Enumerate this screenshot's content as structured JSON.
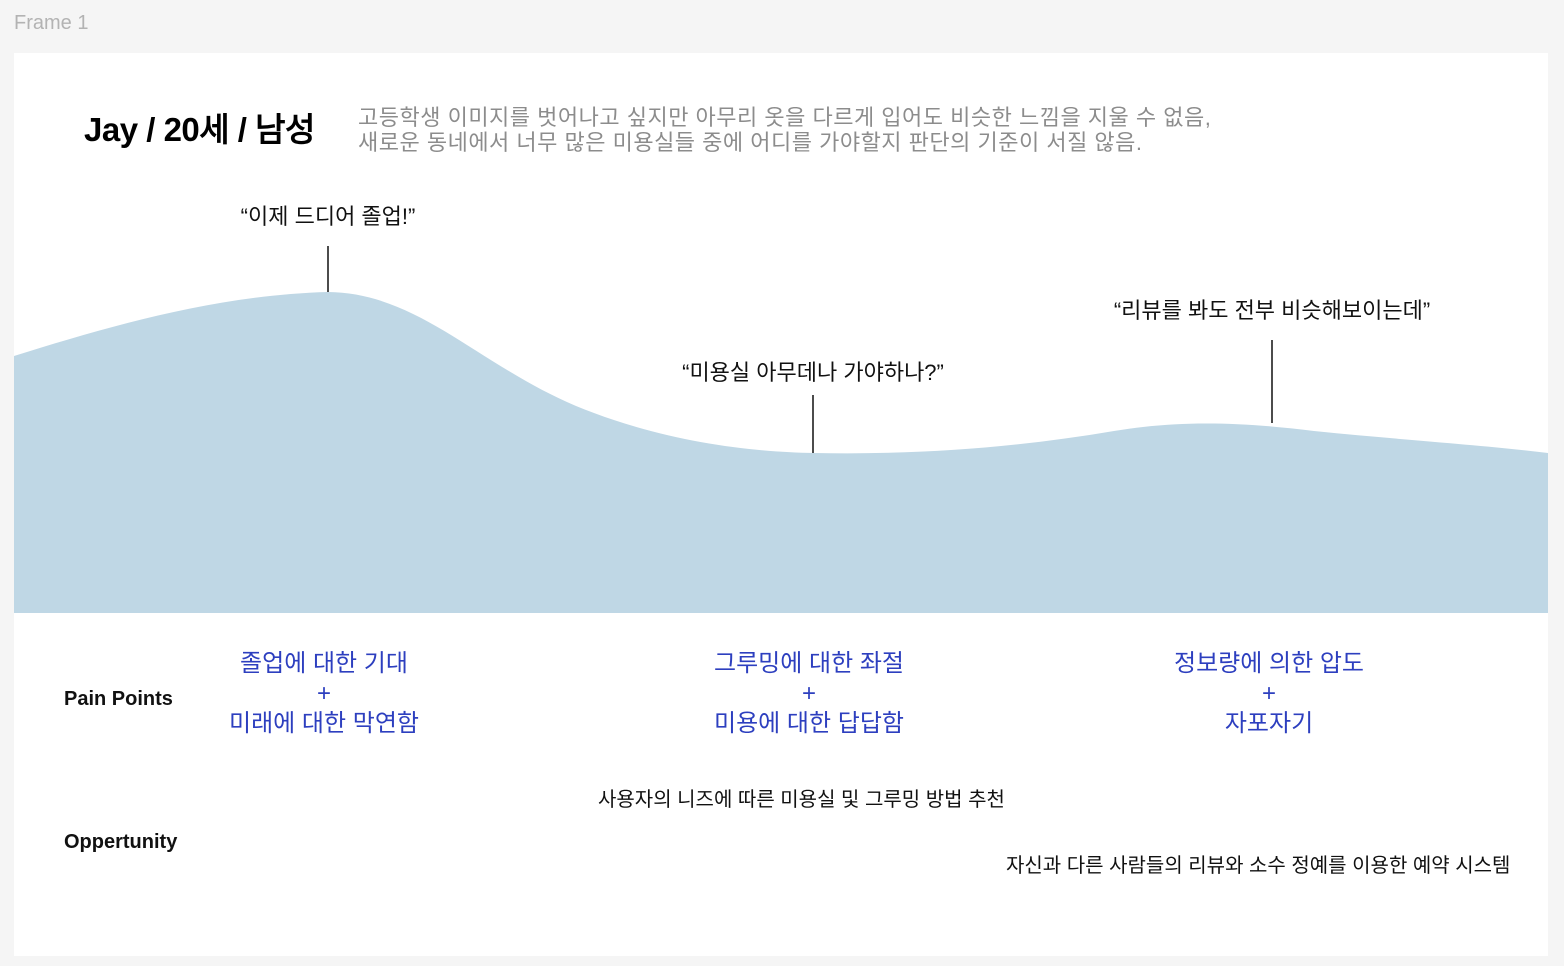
{
  "frame": {
    "label": "Frame 1"
  },
  "persona": {
    "title": "Jay / 20세 / 남성",
    "description_line1": "고등학생 이미지를 벗어나고 싶지만 아무리 옷을 다르게 입어도 비슷한 느낌을 지울 수 없음,",
    "description_line2": "새로운 동네에서 너무 많은 미용실들 중에 어디를 가야할지 판단의 기준이 서질 않음."
  },
  "journey": {
    "fill_color": "#bfd7e5",
    "quotes": [
      "“이제 드디어 졸업!”",
      "“미용실 아무데나 가야하나?”",
      "“리뷰를 봐도 전부 비슷해보이는데”"
    ]
  },
  "pain_points": {
    "label": "Pain Points",
    "color": "#2d3fbf",
    "items": [
      {
        "line1": "졸업에 대한 기대",
        "plus": "+",
        "line2": "미래에 대한 막연함"
      },
      {
        "line1": "그루밍에 대한 좌절",
        "plus": "+",
        "line2": "미용에 대한 답답함"
      },
      {
        "line1": "정보량에 의한 압도",
        "plus": "+",
        "line2": "자포자기"
      }
    ]
  },
  "opportunity": {
    "label": "Oppertunity",
    "items": [
      "사용자의 니즈에 따른 미용실 및 그루밍 방법 추천",
      "자신과 다른 사람들의 리뷰와 소수 정예를 이용한 예약 시스템"
    ]
  }
}
